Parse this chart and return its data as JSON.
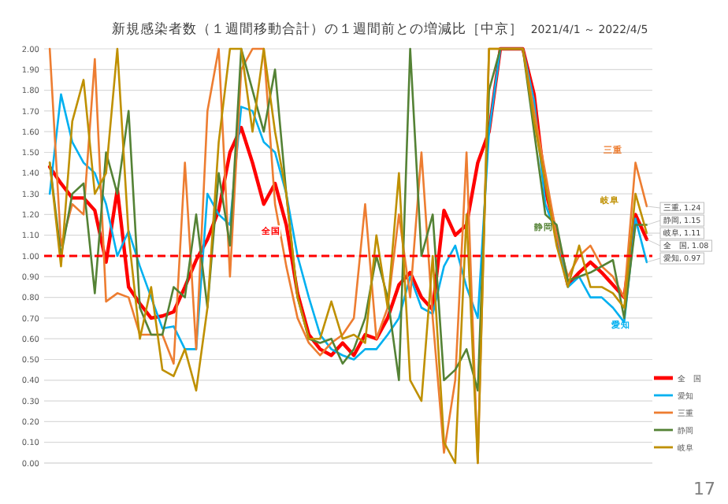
{
  "chart_data": {
    "type": "line",
    "title": "新規感染者数（１週間移動合計）の１週間前との増減比［中京］",
    "subtitle": "2021/4/1 ～ 2022/4/5",
    "categories": [
      null,
      null,
      null,
      null,
      null,
      null,
      null,
      null,
      null,
      null,
      null,
      null,
      null,
      null,
      null,
      null,
      null,
      null,
      null,
      null,
      null,
      null,
      null,
      null,
      null,
      null,
      null,
      null,
      null,
      null,
      null,
      null,
      null,
      null,
      null,
      null,
      null,
      null,
      null,
      null,
      null,
      null,
      null,
      null,
      null,
      null,
      null,
      null,
      null,
      null,
      null,
      null,
      null,
      null
    ],
    "ylim": [
      0,
      2
    ],
    "yticks": [
      {
        "value": 0,
        "label": "0.00"
      },
      {
        "value": 0.1,
        "label": "0.10"
      },
      {
        "value": 0.2,
        "label": "0.20"
      },
      {
        "value": 0.3,
        "label": "0.30"
      },
      {
        "value": 0.4,
        "label": "0.40"
      },
      {
        "value": 0.5,
        "label": "0.50"
      },
      {
        "value": 0.6,
        "label": "0.60"
      },
      {
        "value": 0.7,
        "label": "0.70"
      },
      {
        "value": 0.8,
        "label": "0.80"
      },
      {
        "value": 0.9,
        "label": "0.90"
      },
      {
        "value": 1,
        "label": "1.00"
      },
      {
        "value": 1.1,
        "label": "1.10"
      },
      {
        "value": 1.2,
        "label": "1.20"
      },
      {
        "value": 1.3,
        "label": "1.30"
      },
      {
        "value": 1.4,
        "label": "1.40"
      },
      {
        "value": 1.5,
        "label": "1.50"
      },
      {
        "value": 1.6,
        "label": "1.60"
      },
      {
        "value": 1.7,
        "label": "1.70"
      },
      {
        "value": 1.8,
        "label": "1.80"
      },
      {
        "value": 1.9,
        "label": "1.90"
      },
      {
        "value": 2,
        "label": "2.00"
      }
    ],
    "grid": "y",
    "tick_labels": "y",
    "legend": "right",
    "marker": "none",
    "line_style": "solid",
    "ref_lines": [
      {
        "axis": "y",
        "value": 1,
        "color": "#ff0000",
        "line_style": "dashed"
      }
    ],
    "series": [
      {
        "name": "全　国",
        "color": "#ff0000",
        "values": [
          1.43,
          1.35,
          1.28,
          1.28,
          1.22,
          0.97,
          1.32,
          0.85,
          0.77,
          0.7,
          0.71,
          0.73,
          0.85,
          0.98,
          1.08,
          1.22,
          1.5,
          1.62,
          1.45,
          1.25,
          1.35,
          1.15,
          0.82,
          0.62,
          0.55,
          0.52,
          0.58,
          0.52,
          0.62,
          0.6,
          0.7,
          0.86,
          0.92,
          0.8,
          0.74,
          1.22,
          1.1,
          1.15,
          1.45,
          1.6,
          2.0,
          2.0,
          2.0,
          1.78,
          1.32,
          1.1,
          0.86,
          0.92,
          0.97,
          0.92,
          0.86,
          0.8,
          1.2,
          1.08
        ],
        "value_labels": [
          null,
          null,
          null,
          null,
          null,
          null,
          null,
          null,
          null,
          null,
          null,
          null,
          null,
          null,
          null,
          null,
          null,
          null,
          null,
          null,
          null,
          null,
          null,
          null,
          null,
          null,
          null,
          null,
          null,
          null,
          null,
          null,
          null,
          null,
          null,
          null,
          null,
          null,
          null,
          null,
          null,
          null,
          null,
          null,
          null,
          null,
          null,
          null,
          null,
          null,
          null,
          null,
          null,
          "全　国, 1.08"
        ]
      },
      {
        "name": "愛知",
        "color": "#00b0f0",
        "values": [
          1.3,
          1.78,
          1.55,
          1.45,
          1.4,
          1.25,
          1.0,
          1.12,
          0.95,
          0.8,
          0.65,
          0.66,
          0.55,
          0.55,
          1.3,
          1.2,
          1.15,
          1.72,
          1.7,
          1.55,
          1.5,
          1.3,
          1.0,
          0.8,
          0.62,
          0.55,
          0.52,
          0.5,
          0.55,
          0.55,
          0.62,
          0.7,
          0.9,
          0.75,
          0.72,
          0.95,
          1.05,
          0.85,
          0.7,
          1.6,
          2.0,
          2.0,
          2.0,
          1.75,
          1.25,
          1.1,
          0.85,
          0.9,
          0.8,
          0.8,
          0.75,
          0.68,
          1.18,
          0.97
        ],
        "value_labels": [
          null,
          null,
          null,
          null,
          null,
          null,
          null,
          null,
          null,
          null,
          null,
          null,
          null,
          null,
          null,
          null,
          null,
          null,
          null,
          null,
          null,
          null,
          null,
          null,
          null,
          null,
          null,
          null,
          null,
          null,
          null,
          null,
          null,
          null,
          null,
          null,
          null,
          null,
          null,
          null,
          null,
          null,
          null,
          null,
          null,
          null,
          null,
          null,
          null,
          null,
          null,
          null,
          null,
          "愛知, 0.97"
        ]
      },
      {
        "name": "三重",
        "color": "#ed7d31",
        "values": [
          2.0,
          1.05,
          1.25,
          1.2,
          1.95,
          0.78,
          0.82,
          0.8,
          0.62,
          0.62,
          0.62,
          0.48,
          1.45,
          0.55,
          1.7,
          2.0,
          0.9,
          1.9,
          2.0,
          2.0,
          1.25,
          0.95,
          0.7,
          0.58,
          0.52,
          0.58,
          0.62,
          0.7,
          1.25,
          0.6,
          0.75,
          1.2,
          0.8,
          1.5,
          0.7,
          0.05,
          0.4,
          1.5,
          0.0,
          2.0,
          2.0,
          2.0,
          2.0,
          1.7,
          1.4,
          1.1,
          0.9,
          1.0,
          1.05,
          0.95,
          0.9,
          0.8,
          1.45,
          1.24
        ],
        "value_labels": [
          null,
          null,
          null,
          null,
          null,
          null,
          null,
          null,
          null,
          null,
          null,
          null,
          null,
          null,
          null,
          null,
          null,
          null,
          null,
          null,
          null,
          null,
          null,
          null,
          null,
          null,
          null,
          null,
          null,
          null,
          null,
          null,
          null,
          null,
          null,
          null,
          null,
          null,
          null,
          null,
          null,
          null,
          null,
          null,
          null,
          null,
          null,
          null,
          null,
          null,
          null,
          null,
          null,
          "三重, 1.24"
        ]
      },
      {
        "name": "静岡",
        "color": "#548235",
        "values": [
          1.45,
          1.0,
          1.3,
          1.35,
          0.82,
          1.5,
          1.3,
          1.7,
          0.75,
          0.62,
          0.62,
          0.85,
          0.8,
          1.2,
          0.75,
          1.4,
          1.05,
          2.0,
          1.8,
          1.6,
          1.9,
          1.3,
          0.8,
          0.6,
          0.58,
          0.6,
          0.48,
          0.55,
          0.7,
          1.0,
          0.8,
          0.4,
          2.0,
          1.0,
          1.2,
          0.4,
          0.45,
          0.55,
          0.35,
          1.8,
          2.0,
          2.0,
          2.0,
          1.6,
          1.2,
          1.15,
          0.88,
          0.9,
          0.92,
          0.95,
          0.98,
          0.7,
          1.15,
          1.15
        ],
        "value_labels": [
          null,
          null,
          null,
          null,
          null,
          null,
          null,
          null,
          null,
          null,
          null,
          null,
          null,
          null,
          null,
          null,
          null,
          null,
          null,
          null,
          null,
          null,
          null,
          null,
          null,
          null,
          null,
          null,
          null,
          null,
          null,
          null,
          null,
          null,
          null,
          null,
          null,
          null,
          null,
          null,
          null,
          null,
          null,
          null,
          null,
          null,
          null,
          null,
          null,
          null,
          null,
          null,
          null,
          "静岡, 1.15"
        ]
      },
      {
        "name": "岐阜",
        "color": "#bf9000",
        "values": [
          1.45,
          0.95,
          1.65,
          1.85,
          1.3,
          1.4,
          2.0,
          1.1,
          0.6,
          0.85,
          0.45,
          0.42,
          0.55,
          0.35,
          0.75,
          1.55,
          2.0,
          2.0,
          1.6,
          2.0,
          1.6,
          1.3,
          0.8,
          0.6,
          0.6,
          0.78,
          0.6,
          0.62,
          0.58,
          1.1,
          0.75,
          1.4,
          0.4,
          0.3,
          1.0,
          0.1,
          0.0,
          1.2,
          0.0,
          2.0,
          2.0,
          2.0,
          2.0,
          1.65,
          1.35,
          1.05,
          0.85,
          1.05,
          0.85,
          0.85,
          0.82,
          0.75,
          1.3,
          1.11
        ],
        "value_labels": [
          null,
          null,
          null,
          null,
          null,
          null,
          null,
          null,
          null,
          null,
          null,
          null,
          null,
          null,
          null,
          null,
          null,
          null,
          null,
          null,
          null,
          null,
          null,
          null,
          null,
          null,
          null,
          null,
          null,
          null,
          null,
          null,
          null,
          null,
          null,
          null,
          null,
          null,
          null,
          null,
          null,
          null,
          null,
          null,
          null,
          null,
          null,
          null,
          null,
          null,
          null,
          null,
          null,
          "岐阜, 1.11"
        ]
      }
    ],
    "annotations": [
      {
        "text": "全国",
        "y": 1.12
      },
      "愛知",
      "三重",
      "静岡",
      "岐阜",
      "17"
    ]
  }
}
